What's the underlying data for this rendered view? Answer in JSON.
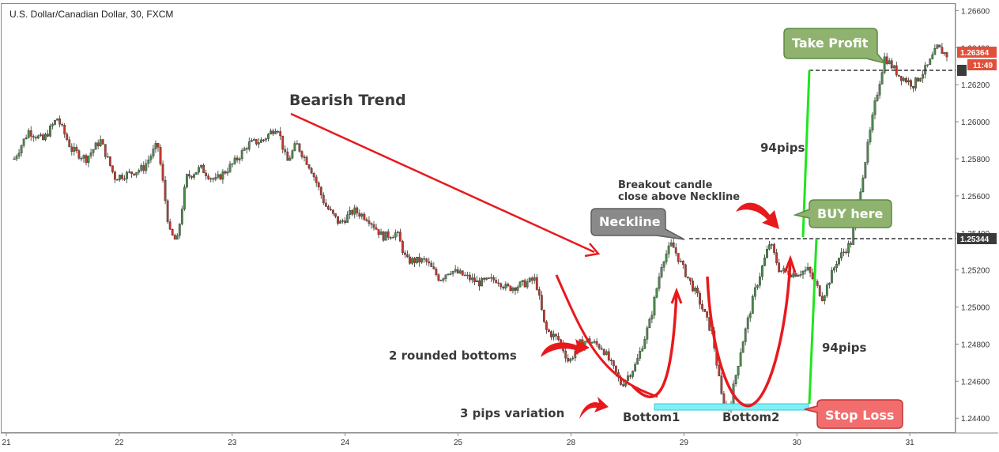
{
  "chart_title": "U.S. Dollar/Canadian Dollar, 30, FXCM",
  "chart_data": {
    "type": "candlestick",
    "title": "U.S. Dollar/Canadian Dollar, 30, FXCM",
    "symbol": "USD/CAD",
    "timeframe": "30",
    "source": "FXCM",
    "x_ticks": [
      "21",
      "22",
      "23",
      "24",
      "25",
      "28",
      "29",
      "30",
      "31"
    ],
    "y_ticks": [
      "1.26600",
      "1.26400",
      "1.26200",
      "1.26000",
      "1.25800",
      "1.25600",
      "1.25400",
      "1.25200",
      "1.25000",
      "1.24800",
      "1.24600",
      "1.24400"
    ],
    "ylim": [
      1.2432,
      1.2664
    ],
    "price_path": [
      [
        0,
        1.258
      ],
      [
        0.3,
        1.2595
      ],
      [
        0.6,
        1.259
      ],
      [
        0.9,
        1.2602
      ],
      [
        1.2,
        1.2585
      ],
      [
        1.5,
        1.258
      ],
      [
        1.8,
        1.259
      ],
      [
        2.1,
        1.257
      ],
      [
        2.4,
        1.2572
      ],
      [
        2.7,
        1.2575
      ],
      [
        3.0,
        1.2588
      ],
      [
        3.25,
        1.254
      ],
      [
        3.4,
        1.2535
      ],
      [
        3.6,
        1.257
      ],
      [
        3.9,
        1.2575
      ],
      [
        4.2,
        1.2568
      ],
      [
        4.6,
        1.2578
      ],
      [
        4.9,
        1.2588
      ],
      [
        5.2,
        1.259
      ],
      [
        5.5,
        1.2598
      ],
      [
        5.7,
        1.2578
      ],
      [
        5.9,
        1.2588
      ],
      [
        6.2,
        1.2575
      ],
      [
        6.5,
        1.2555
      ],
      [
        6.8,
        1.2545
      ],
      [
        7.1,
        1.2552
      ],
      [
        7.4,
        1.2548
      ],
      [
        7.7,
        1.2538
      ],
      [
        8.0,
        1.254
      ],
      [
        8.2,
        1.2525
      ],
      [
        8.6,
        1.2525
      ],
      [
        8.9,
        1.2515
      ],
      [
        9.1,
        1.252
      ],
      [
        9.4,
        1.2517
      ],
      [
        9.7,
        1.2513
      ],
      [
        10.1,
        1.2515
      ],
      [
        10.3,
        1.251
      ],
      [
        10.6,
        1.2512
      ],
      [
        10.9,
        1.2515
      ],
      [
        11.1,
        1.2488
      ],
      [
        11.4,
        1.2482
      ],
      [
        11.6,
        1.247
      ],
      [
        11.8,
        1.248
      ],
      [
        12.0,
        1.2482
      ],
      [
        12.3,
        1.2478
      ],
      [
        12.7,
        1.2458
      ],
      [
        13.0,
        1.2469
      ],
      [
        13.3,
        1.2493
      ],
      [
        13.55,
        1.2525
      ],
      [
        13.75,
        1.2534
      ],
      [
        14.0,
        1.252
      ],
      [
        14.3,
        1.2505
      ],
      [
        14.6,
        1.2485
      ],
      [
        14.8,
        1.245
      ],
      [
        14.95,
        1.2445
      ],
      [
        15.2,
        1.2478
      ],
      [
        15.5,
        1.251
      ],
      [
        15.8,
        1.2535
      ],
      [
        16.0,
        1.252
      ],
      [
        16.3,
        1.2518
      ],
      [
        16.6,
        1.252
      ],
      [
        16.9,
        1.2505
      ],
      [
        17.2,
        1.2525
      ],
      [
        17.5,
        1.2535
      ],
      [
        17.8,
        1.258
      ],
      [
        18.0,
        1.261
      ],
      [
        18.2,
        1.2635
      ],
      [
        18.5,
        1.2625
      ],
      [
        18.8,
        1.262
      ],
      [
        19.1,
        1.263
      ],
      [
        19.3,
        1.264
      ],
      [
        19.5,
        1.2636
      ]
    ],
    "current_price": "1.26364",
    "countdown": "11:49",
    "neckline_price": "1.25344",
    "take_profit_line": 1.2628,
    "lines": {
      "neckline_color": "#333333",
      "entry_price_tag_color": "#3b3b3b",
      "current_price_tag_color": "#e0503b",
      "trend_arrow_color": "#e8191d",
      "measure_color": "#1ee61e",
      "support_zone_color": "#7ff0f5"
    },
    "candle_colors": {
      "up": "#4b8a4b",
      "down": "#c0392b"
    }
  },
  "annotations": {
    "bearish_trend": "Bearish Trend",
    "neckline": "Neckline",
    "breakout_line1": "Breakout candle",
    "breakout_line2": "close above Neckline",
    "take_profit": "Take Profit",
    "buy_here": "BUY here",
    "stop_loss": "Stop Loss",
    "pips_upper": "94pips",
    "pips_lower": "94pips",
    "rounded_bottoms": "2 rounded bottoms",
    "pips_variation": "3 pips variation",
    "bottom1": "Bottom1",
    "bottom2": "Bottom2"
  }
}
